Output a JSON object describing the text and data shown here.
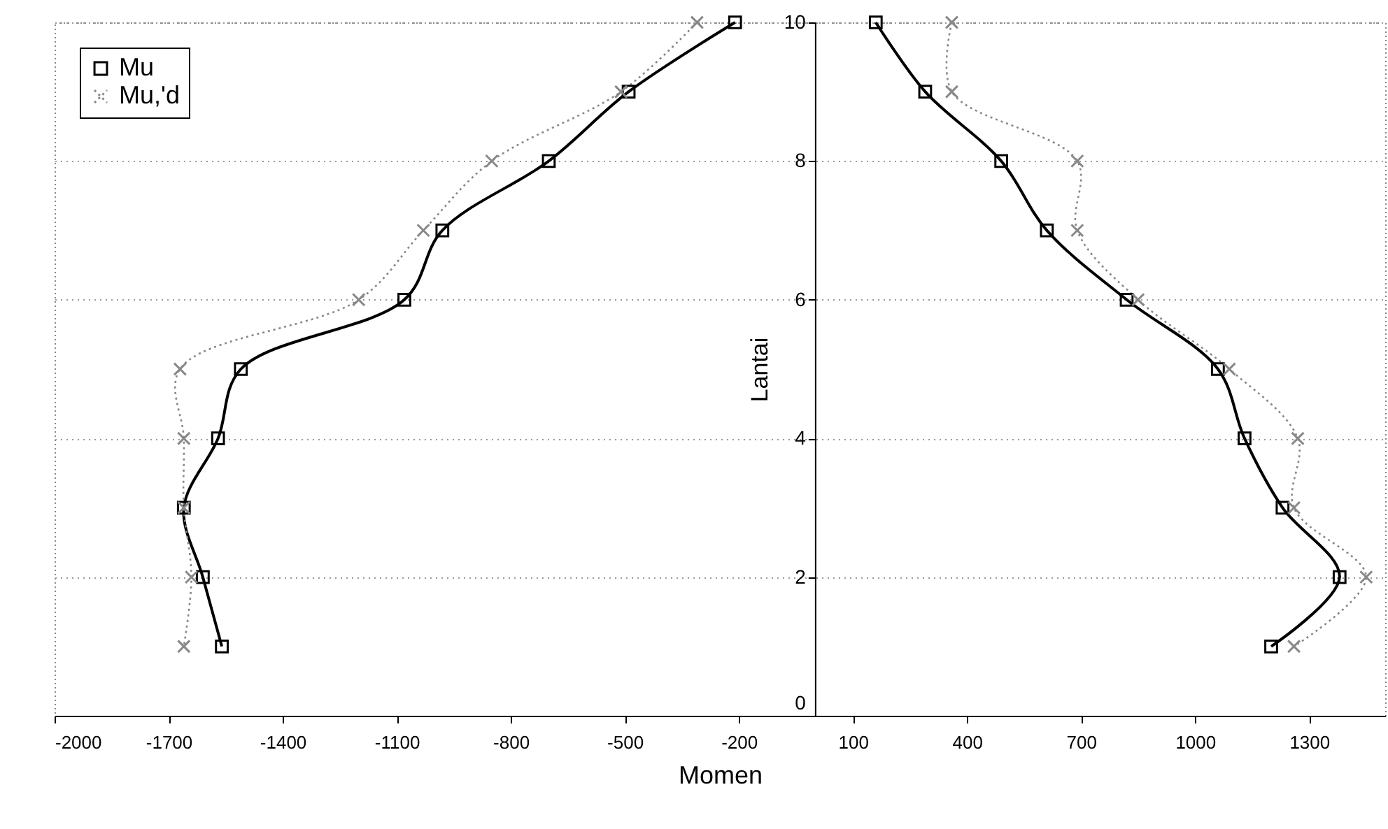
{
  "chart_data": {
    "type": "line",
    "xlabel": "Momen",
    "ylabel": "Lantai",
    "xlim": [
      -2000,
      1500
    ],
    "xticks": [
      -2000,
      -1700,
      -1400,
      -1100,
      -800,
      -500,
      -200,
      100,
      400,
      700,
      1000,
      1300
    ],
    "ylim": [
      0,
      10
    ],
    "yticks": [
      0,
      2,
      4,
      6,
      8,
      10
    ],
    "grid": "y",
    "legend": "top left",
    "series": [
      {
        "name": "Mu",
        "color": "#000000",
        "marker": "square",
        "line_style": "solid",
        "x": [
          -210,
          -490,
          -700,
          -980,
          -1080,
          -1510,
          -1570,
          -1660,
          -1610,
          -1560
        ],
        "values": [
          10,
          9,
          8,
          7,
          6,
          5,
          4,
          3,
          2,
          1
        ]
      },
      {
        "name": "Mu,'d",
        "color": "#888888",
        "marker": "cross",
        "line_style": "dotted",
        "x": [
          -310,
          -510,
          -850,
          -1030,
          -1200,
          -1670,
          -1660,
          -1660,
          -1640,
          -1660
        ],
        "values": [
          10,
          9,
          8,
          7,
          6,
          5,
          4,
          3,
          2,
          1
        ]
      },
      {
        "color": "#000000",
        "marker": "square",
        "line_style": "solid",
        "x": [
          160,
          290,
          490,
          610,
          820,
          1060,
          1130,
          1230,
          1380,
          1200
        ],
        "values": [
          10,
          9,
          8,
          7,
          6,
          5,
          4,
          3,
          2,
          1
        ]
      },
      {
        "color": "#888888",
        "marker": "cross",
        "line_style": "dotted",
        "x": [
          360,
          360,
          690,
          690,
          850,
          1090,
          1270,
          1260,
          1450,
          1260
        ],
        "values": [
          10,
          9,
          8,
          7,
          6,
          5,
          4,
          3,
          2,
          1
        ]
      }
    ]
  }
}
